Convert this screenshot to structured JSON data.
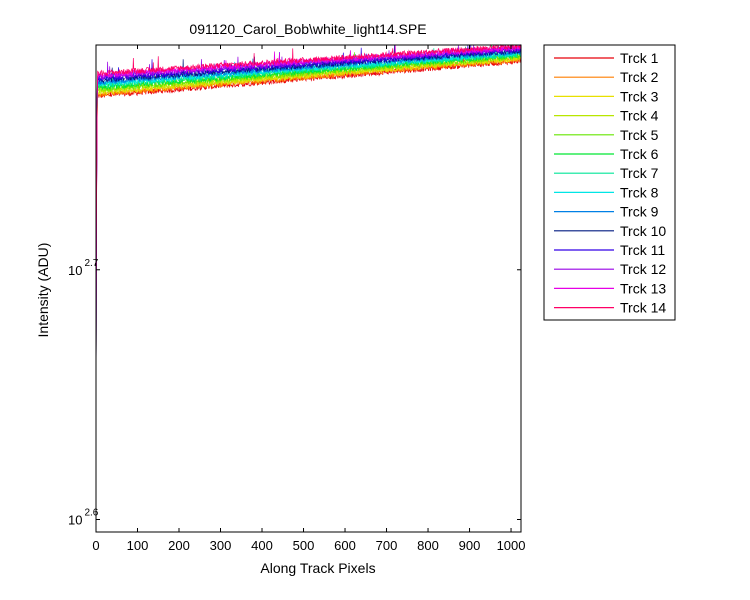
{
  "chart_data": {
    "type": "line",
    "title": "091120_Carol_Bob\\white_light14.SPE",
    "xlabel": "Along Track Pixels",
    "ylabel": "Intensity (ADU)",
    "x_scale": "linear",
    "y_scale": "log",
    "xlim": [
      0,
      1024
    ],
    "ylim_log10": [
      2.595,
      2.79
    ],
    "x_ticks": [
      "0",
      "100",
      "200",
      "300",
      "400",
      "500",
      "600",
      "700",
      "800",
      "900",
      "1000"
    ],
    "x_tick_values": [
      0,
      100,
      200,
      300,
      400,
      500,
      600,
      700,
      800,
      900,
      1000
    ],
    "y_ticks": [
      {
        "base": "10",
        "exp": "2.6",
        "log10": 2.6
      },
      {
        "base": "10",
        "exp": "2.7",
        "log10": 2.7
      }
    ],
    "grid": false,
    "legend_position": "outside-right",
    "series": [
      {
        "name": "Trck 1",
        "color": "#e8000b",
        "start_log10": 2.7695,
        "end_log10": 2.7837
      },
      {
        "name": "Trck 2",
        "color": "#ff7f00",
        "start_log10": 2.7702,
        "end_log10": 2.7841
      },
      {
        "name": "Trck 3",
        "color": "#e8e000",
        "start_log10": 2.7709,
        "end_log10": 2.7846
      },
      {
        "name": "Trck 4",
        "color": "#b8e600",
        "start_log10": 2.7716,
        "end_log10": 2.7851
      },
      {
        "name": "Trck 5",
        "color": "#66e600",
        "start_log10": 2.7723,
        "end_log10": 2.7855
      },
      {
        "name": "Trck 6",
        "color": "#00e633",
        "start_log10": 2.773,
        "end_log10": 2.786
      },
      {
        "name": "Trck 7",
        "color": "#00e699",
        "start_log10": 2.7737,
        "end_log10": 2.7864
      },
      {
        "name": "Trck 8",
        "color": "#00e6e6",
        "start_log10": 2.7744,
        "end_log10": 2.7869
      },
      {
        "name": "Trck 9",
        "color": "#0080e6",
        "start_log10": 2.7751,
        "end_log10": 2.7873
      },
      {
        "name": "Trck 10",
        "color": "#001a80",
        "start_log10": 2.7758,
        "end_log10": 2.7878
      },
      {
        "name": "Trck 11",
        "color": "#3300e6",
        "start_log10": 2.7765,
        "end_log10": 2.7882
      },
      {
        "name": "Trck 12",
        "color": "#9900e6",
        "start_log10": 2.7772,
        "end_log10": 2.7887
      },
      {
        "name": "Trck 13",
        "color": "#e600e6",
        "start_log10": 2.7779,
        "end_log10": 2.7891
      },
      {
        "name": "Trck 14",
        "color": "#ff0066",
        "start_log10": 2.7786,
        "end_log10": 2.7896
      }
    ]
  }
}
